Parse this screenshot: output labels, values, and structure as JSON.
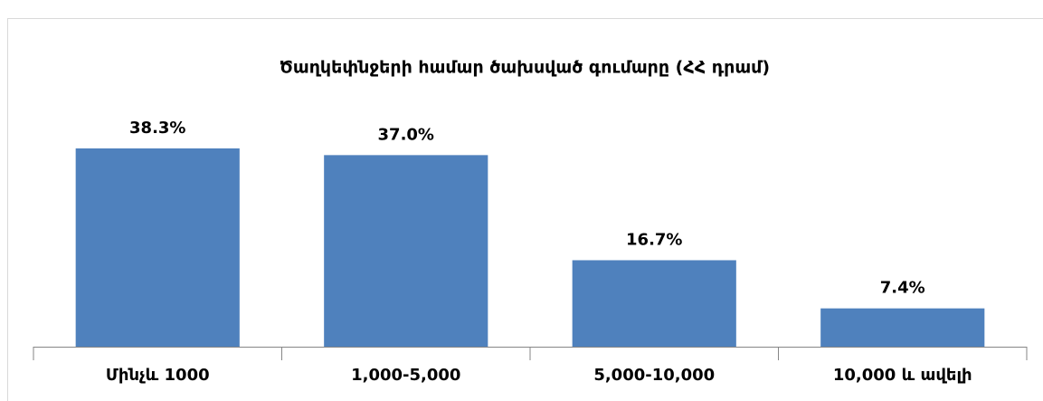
{
  "chart_data": {
    "type": "bar",
    "title": "Ծաղկեփնջերի համար ծախսված գումարը (ՀՀ դրամ)",
    "categories": [
      "Մինչև 1000",
      "1,000-5,000",
      "5,000-10,000",
      "10,000 և ավելի"
    ],
    "values": [
      38.3,
      37.0,
      16.7,
      7.4
    ],
    "value_labels": [
      "38.3%",
      "37.0%",
      "16.7%",
      "7.4%"
    ],
    "color": "#4f81bd",
    "ylim": [
      0,
      50
    ]
  }
}
